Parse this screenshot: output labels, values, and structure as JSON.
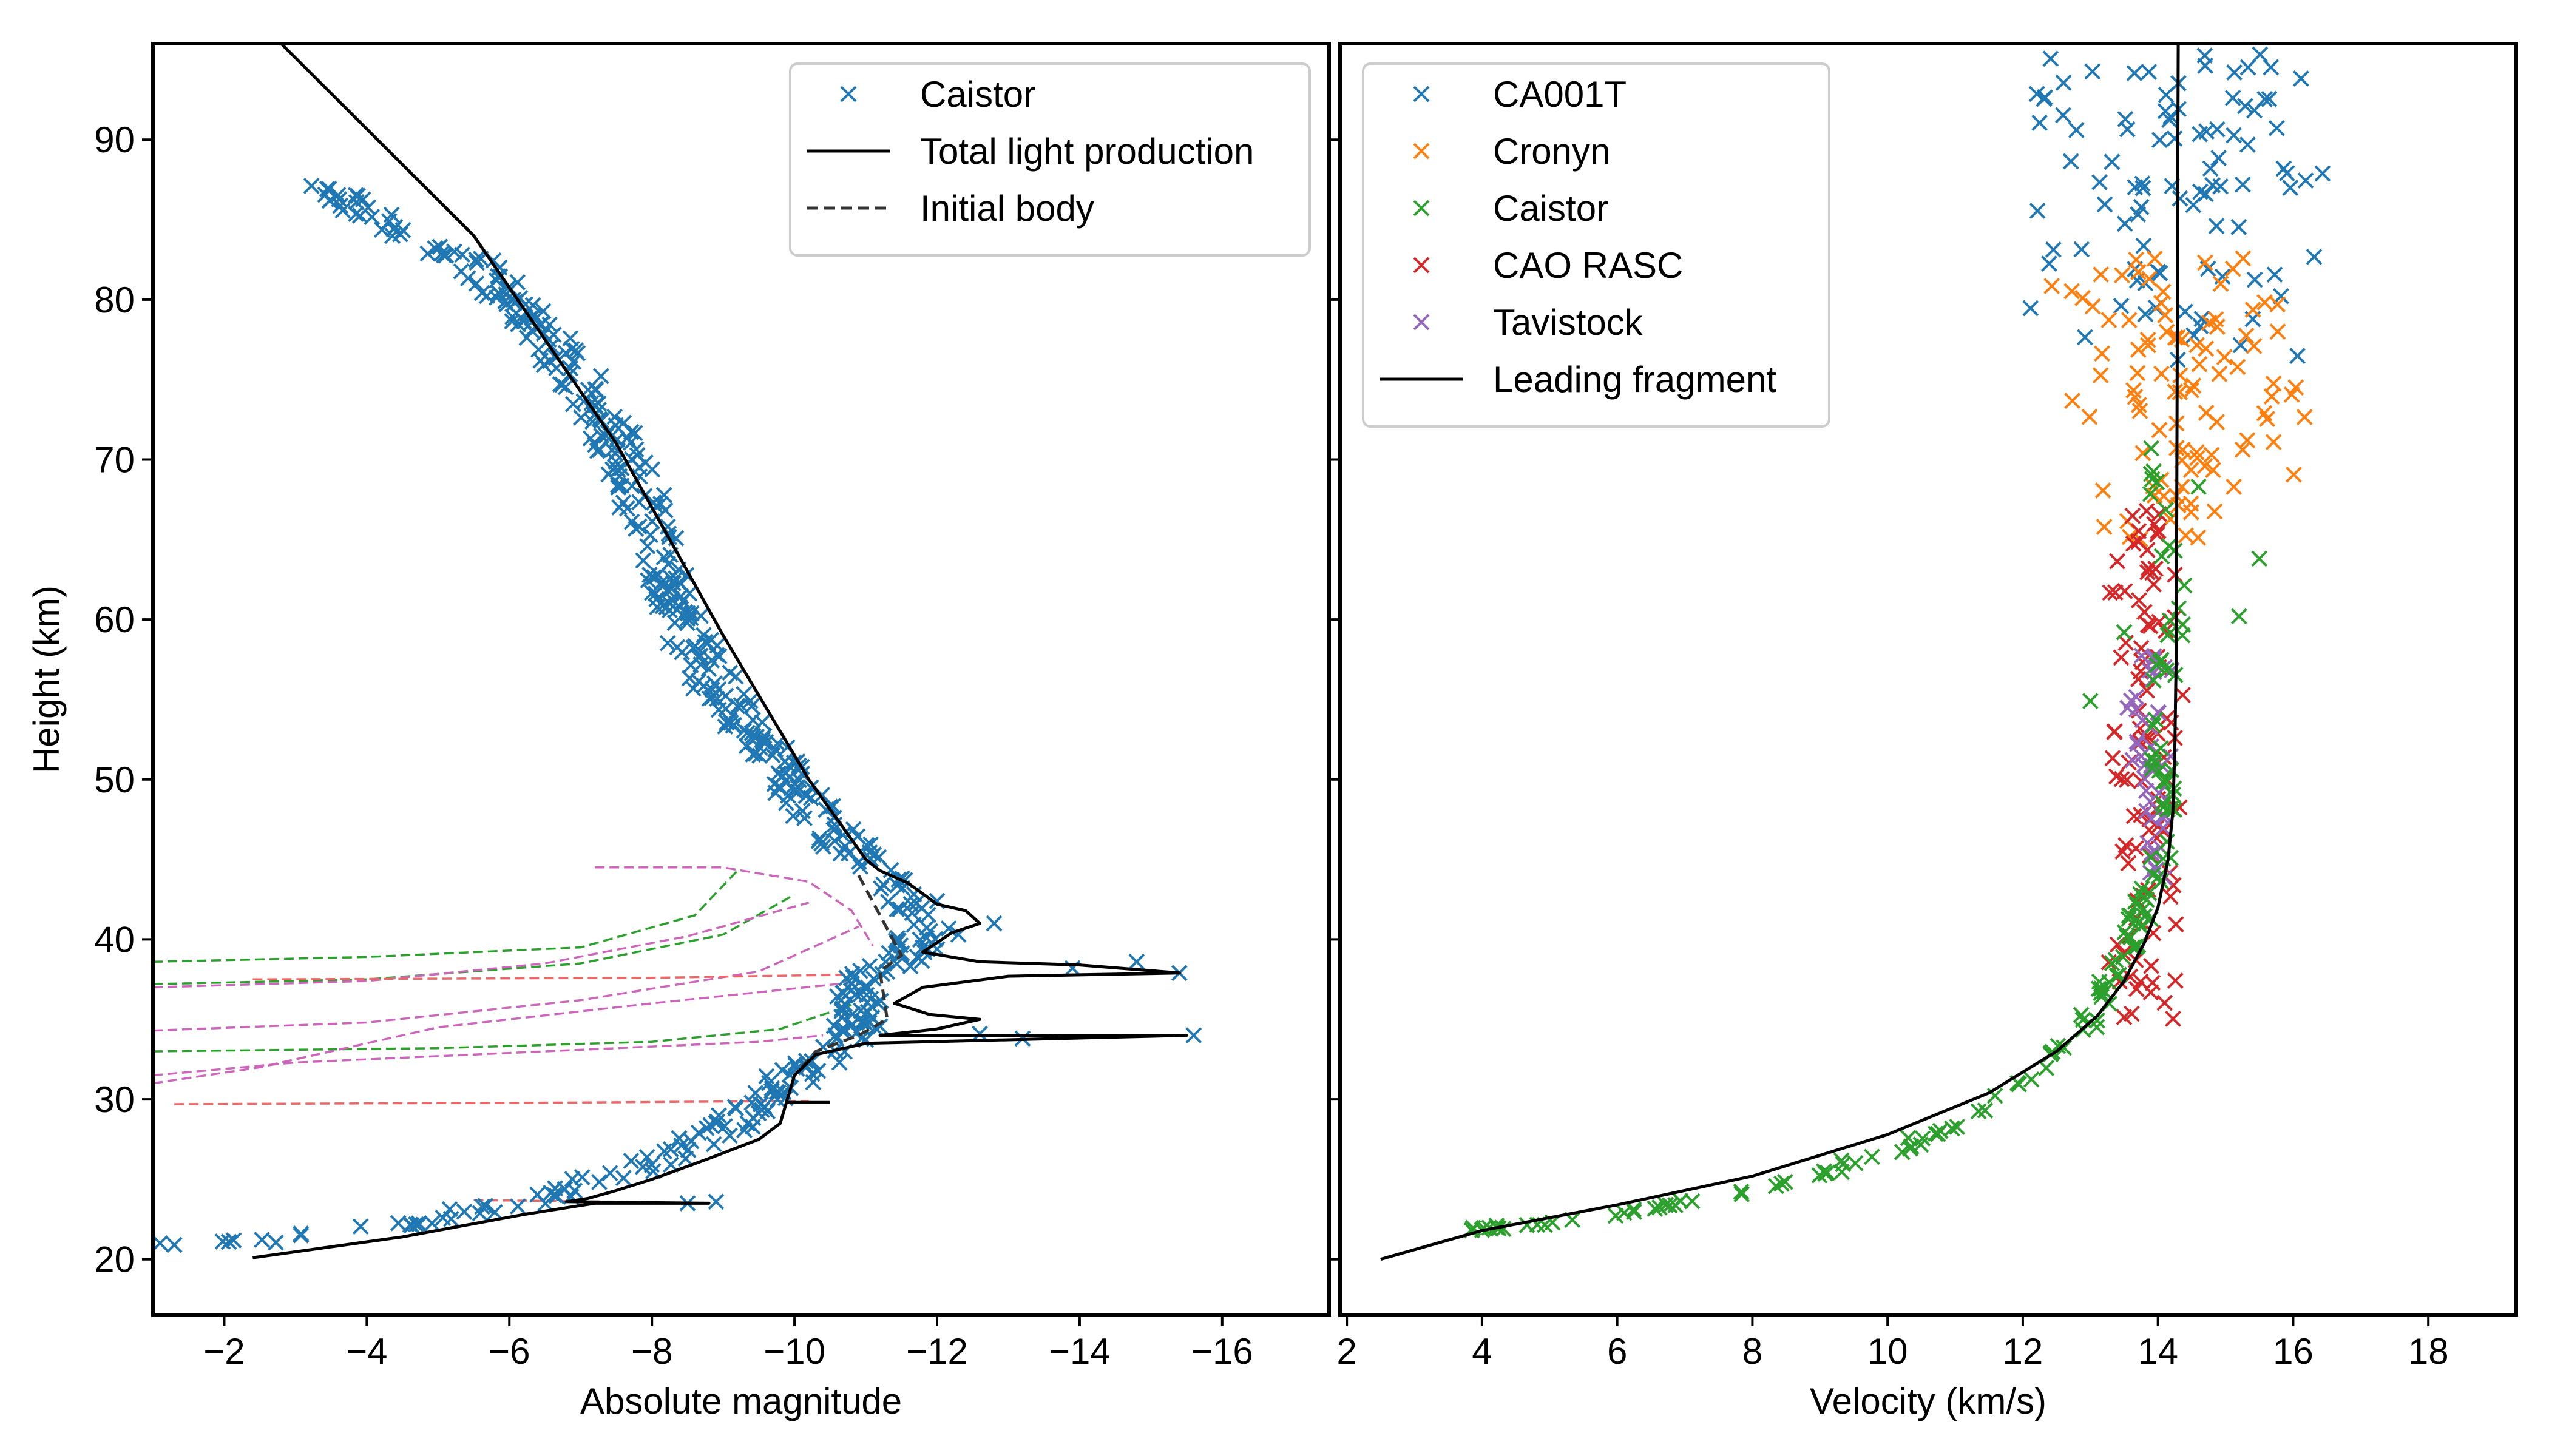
{
  "chart_data": [
    {
      "type": "scatter",
      "panel": "left",
      "xlabel": "Absolute magnitude",
      "ylabel": "Height (km)",
      "xlim": [
        -1,
        -17.5
      ],
      "ylim": [
        16.5,
        96
      ],
      "x_ticks": [
        -2,
        -4,
        -6,
        -8,
        -10,
        -12,
        -14,
        -16
      ],
      "x_tick_labels": [
        "−2",
        "−4",
        "−6",
        "−8",
        "−10",
        "−12",
        "−14",
        "−16"
      ],
      "y_ticks": [
        20,
        30,
        40,
        50,
        60,
        70,
        80,
        90
      ],
      "y_tick_labels": [
        "20",
        "30",
        "40",
        "50",
        "60",
        "70",
        "80",
        "90"
      ],
      "grid": false,
      "legend_position": "top-right",
      "legend": [
        {
          "label": "Caistor",
          "marker": "x",
          "color": "#1f77b4"
        },
        {
          "label": "Total light production",
          "line": "solid",
          "color": "#000000"
        },
        {
          "label": "Initial body",
          "line": "dashed",
          "color": "#333333"
        }
      ],
      "colors": {
        "caistor": "#1f77b4",
        "model": "#000000",
        "fragment_green": "#2ca02c",
        "fragment_pink": "#cc66bb",
        "fragment_red": "#ee6666"
      },
      "caistor_trend": {
        "h": [
          87,
          84,
          82,
          78,
          75,
          72,
          68,
          64,
          60,
          56,
          52,
          49,
          46,
          44,
          42,
          40.5,
          39,
          37.5,
          36,
          34.5,
          33,
          31.5,
          30,
          28.5,
          27,
          25.5,
          24,
          23,
          22,
          21.3,
          20.8
        ],
        "m": [
          -3.4,
          -4.6,
          -5.6,
          -6.5,
          -7.0,
          -7.4,
          -7.8,
          -8.1,
          -8.4,
          -8.9,
          -9.6,
          -10.1,
          -10.7,
          -11.2,
          -11.6,
          -11.9,
          -11.6,
          -10.8,
          -11.0,
          -10.9,
          -10.5,
          -10.0,
          -9.6,
          -9.1,
          -8.5,
          -7.6,
          -6.6,
          -5.5,
          -4.3,
          -3.0,
          -2.0
        ]
      },
      "caistor_extra": [
        {
          "m": -1.1,
          "h": 21.0
        },
        {
          "m": -1.3,
          "h": 20.9
        },
        {
          "m": -12.8,
          "h": 41.0
        },
        {
          "m": -12.3,
          "h": 40.3
        },
        {
          "m": -14.8,
          "h": 38.6
        },
        {
          "m": -15.4,
          "h": 37.9
        },
        {
          "m": -13.9,
          "h": 38.2
        },
        {
          "m": -12.6,
          "h": 34.1
        },
        {
          "m": -15.6,
          "h": 34.0
        },
        {
          "m": -13.2,
          "h": 33.8
        },
        {
          "m": -8.9,
          "h": 23.6
        },
        {
          "m": -8.5,
          "h": 23.5
        },
        {
          "m": -11.8,
          "h": 39.5
        },
        {
          "m": -12.0,
          "h": 42.4
        }
      ],
      "total_light_production": {
        "m": [
          -2.8,
          -5.5,
          -7.5,
          -9.0,
          -10.2,
          -11.0,
          -11.2,
          -11.6,
          -12.0,
          -12.4,
          -12.6,
          -12.2,
          -11.8,
          -12.6,
          -14.0,
          -15.4,
          -13.0,
          -11.8,
          -11.4,
          -11.9,
          -12.6,
          -12.0,
          -11.2,
          -15.5,
          -11.0,
          -10.3,
          -10.0,
          -9.9,
          -9.8,
          -9.5,
          -8.8,
          -8.0,
          -7.5,
          -7.1,
          -6.8,
          -8.8,
          -7.2,
          -6.2,
          -4.5,
          -2.4
        ],
        "h": [
          96,
          84,
          71,
          59,
          50,
          45,
          44.3,
          43.5,
          42.2,
          41.8,
          41.0,
          40.4,
          39.2,
          38.6,
          38.4,
          37.9,
          37.7,
          37.0,
          36.0,
          35.3,
          35.0,
          34.4,
          34.0,
          34.0,
          33.5,
          32.8,
          31.5,
          30.0,
          28.5,
          27.5,
          26.3,
          25.0,
          24.3,
          23.8,
          23.6,
          23.5,
          23.5,
          22.8,
          21.4,
          20.1
        ]
      },
      "initial_body": {
        "m": [
          -10.9,
          -11.5,
          -11.2,
          -11.3,
          -10.9,
          -10.3,
          -10.0
        ],
        "h": [
          44.0,
          39.0,
          38.0,
          35.0,
          34.0,
          33.0,
          31.5
        ]
      },
      "total_light_short_segments": [
        {
          "m": [
            -9.9,
            -10.5
          ],
          "h": [
            29.8,
            29.8
          ]
        }
      ],
      "fragment_curves": [
        {
          "color": "green",
          "m": [
            -1.0,
            -4.0,
            -7.0,
            -8.6,
            -9.2
          ],
          "h": [
            38.6,
            38.9,
            39.5,
            41.5,
            44.3
          ]
        },
        {
          "color": "green",
          "m": [
            -1.0,
            -4.0,
            -7.0,
            -9.0,
            -10.0
          ],
          "h": [
            37.2,
            37.5,
            38.5,
            40.3,
            42.8
          ]
        },
        {
          "color": "green",
          "m": [
            -1.0,
            -5.0,
            -8.0,
            -9.8,
            -10.8
          ],
          "h": [
            33.0,
            33.2,
            33.6,
            34.4,
            35.9
          ]
        },
        {
          "color": "pink",
          "m": [
            -7.2,
            -9.0,
            -10.2,
            -10.8,
            -11.1
          ],
          "h": [
            44.5,
            44.5,
            43.6,
            41.8,
            39.6
          ]
        },
        {
          "color": "pink",
          "m": [
            -1.0,
            -4.0,
            -6.5,
            -8.5,
            -10.2
          ],
          "h": [
            37.0,
            37.4,
            38.5,
            40.2,
            42.3
          ]
        },
        {
          "color": "pink",
          "m": [
            -1.0,
            -4.0,
            -7.0,
            -9.5,
            -10.9
          ],
          "h": [
            34.3,
            34.8,
            36.2,
            38.0,
            40.8
          ]
        },
        {
          "color": "pink",
          "m": [
            -1.0,
            -2.5,
            -5.0,
            -8.0,
            -10.8
          ],
          "h": [
            31.0,
            32.0,
            34.5,
            36.0,
            37.3
          ]
        },
        {
          "color": "pink",
          "m": [
            -1.0,
            -3.0,
            -6.5,
            -9.5,
            -10.4
          ],
          "h": [
            31.5,
            32.3,
            33.0,
            33.6,
            34.0
          ]
        },
        {
          "color": "red",
          "m": [
            -2.4,
            -8.0,
            -10.8
          ],
          "h": [
            37.5,
            37.6,
            37.8
          ]
        },
        {
          "color": "red",
          "m": [
            -1.3,
            -7.0,
            -10.2
          ],
          "h": [
            29.7,
            29.8,
            29.9
          ]
        },
        {
          "color": "red",
          "m": [
            -5.5,
            -7.5,
            -8.5
          ],
          "h": [
            23.7,
            23.6,
            23.5
          ]
        }
      ]
    },
    {
      "type": "scatter",
      "panel": "right",
      "xlabel": "Velocity (km/s)",
      "ylabel": "",
      "xlim": [
        1.9,
        19.3
      ],
      "ylim": [
        16.5,
        96
      ],
      "x_ticks": [
        2,
        4,
        6,
        8,
        10,
        12,
        14,
        16,
        18
      ],
      "x_tick_labels": [
        "2",
        "4",
        "6",
        "8",
        "10",
        "12",
        "14",
        "16",
        "18"
      ],
      "y_ticks": [
        20,
        30,
        40,
        50,
        60,
        70,
        80,
        90
      ],
      "grid": false,
      "legend_position": "top-left",
      "legend": [
        {
          "label": "CA001T",
          "marker": "x",
          "color": "#1f77b4"
        },
        {
          "label": "Cronyn",
          "marker": "x",
          "color": "#ff7f0e"
        },
        {
          "label": "Caistor",
          "marker": "x",
          "color": "#2ca02c"
        },
        {
          "label": "CAO RASC",
          "marker": "x",
          "color": "#d62728"
        },
        {
          "label": "Tavistock",
          "marker": "x",
          "color": "#9467bd"
        },
        {
          "label": "Leading fragment",
          "line": "solid",
          "color": "#000000"
        }
      ],
      "series_clusters": [
        {
          "name": "CA001T",
          "color": "#1f77b4",
          "count": 95,
          "h_range": [
            76,
            96
          ],
          "v_center": 14.2,
          "v_spread": 2.4
        },
        {
          "name": "Cronyn",
          "color": "#ff7f0e",
          "count": 100,
          "h_range": [
            65,
            83
          ],
          "v_center": 14.3,
          "v_spread": 2.0
        },
        {
          "name": "CAO RASC",
          "color": "#d62728",
          "count": 100,
          "h_range": [
            35,
            67
          ],
          "v_center": 13.8,
          "v_spread": 0.6
        },
        {
          "name": "Tavistock",
          "color": "#9467bd",
          "count": 45,
          "h_range": [
            43,
            58
          ],
          "v_center": 13.9,
          "v_spread": 0.4
        }
      ],
      "caistor_green_trend": {
        "h": [
          21.8,
          22.6,
          23.5,
          24.5,
          25.6,
          26.8,
          28.0,
          29.5,
          31.0,
          33.0,
          35.0,
          37.0,
          40.0,
          44.0,
          50.0,
          55.0,
          60.0,
          64.0,
          67.0,
          70.0
        ],
        "v": [
          3.9,
          5.5,
          7.0,
          8.2,
          9.2,
          10.1,
          10.8,
          11.5,
          12.0,
          12.6,
          13.0,
          13.2,
          13.6,
          14.0,
          14.1,
          14.0,
          14.3,
          14.2,
          14.0,
          14.0
        ]
      },
      "caistor_green_extra": [
        {
          "v": 13.0,
          "h": 54.9
        },
        {
          "v": 15.2,
          "h": 60.2
        },
        {
          "v": 15.5,
          "h": 63.8
        },
        {
          "v": 13.5,
          "h": 59.2
        },
        {
          "v": 14.6,
          "h": 68.3
        },
        {
          "v": 13.9,
          "h": 70.7
        }
      ],
      "leading_fragment": {
        "v": [
          2.5,
          4.0,
          6.0,
          8.0,
          10.0,
          11.5,
          12.5,
          13.1,
          13.5,
          13.8,
          14.0,
          14.15,
          14.22,
          14.25,
          14.27,
          14.28,
          14.29,
          14.3
        ],
        "h": [
          20.0,
          21.8,
          23.4,
          25.2,
          27.8,
          30.4,
          33.0,
          35.2,
          37.4,
          39.8,
          42.0,
          45.0,
          48.0,
          52.0,
          58.0,
          70.0,
          85.0,
          96.0
        ]
      }
    }
  ]
}
